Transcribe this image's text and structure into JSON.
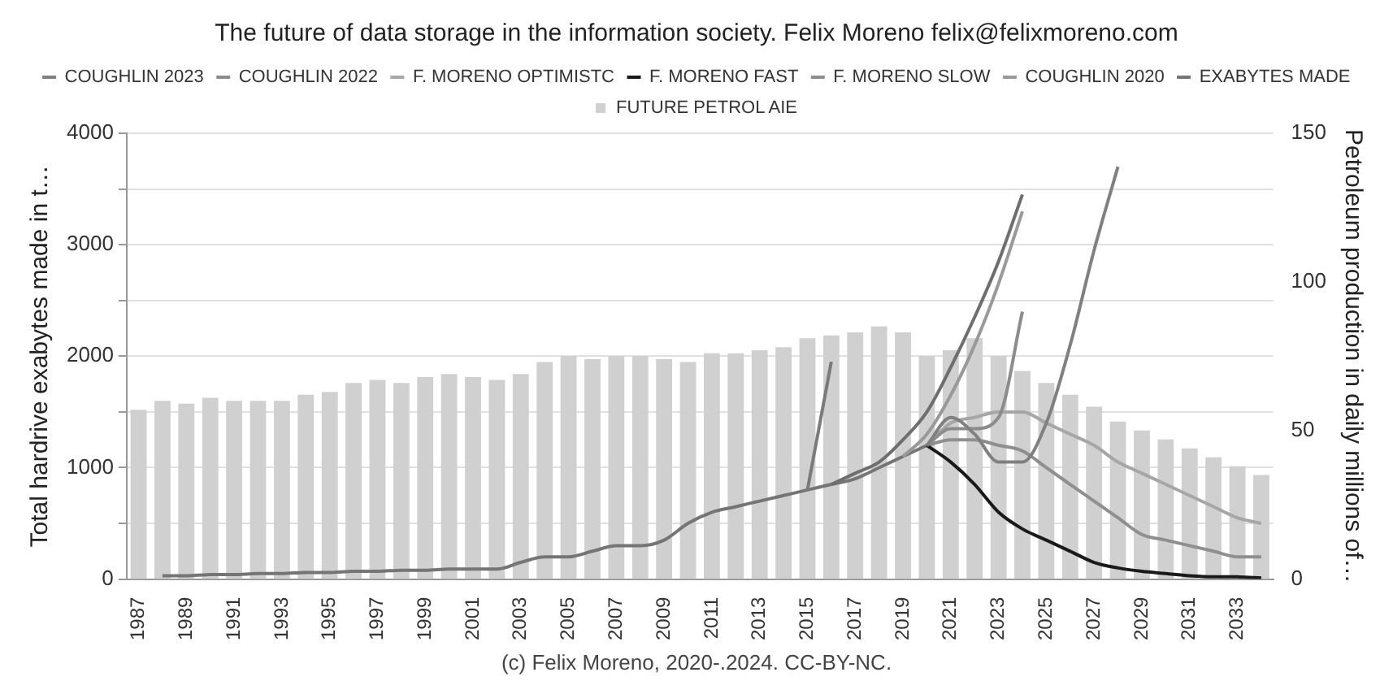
{
  "chart_data": {
    "type": "line",
    "title": "The future of data storage in the information society. Felix Moreno felix@felixmoreno.com",
    "categories": [
      "1987",
      null,
      "1989",
      null,
      "1991",
      null,
      "1993",
      null,
      "1995",
      null,
      "1997",
      null,
      "1999",
      null,
      "2001",
      null,
      "2003",
      null,
      "2005",
      null,
      "2007",
      null,
      "2009",
      null,
      "2011",
      null,
      "2013",
      null,
      "2015",
      null,
      "2017",
      null,
      "2019",
      null,
      "2021",
      null,
      "2023",
      null,
      "2025",
      null,
      "2027",
      null,
      "2029",
      null,
      "2031",
      null,
      "2033",
      null
    ],
    "series": [
      {
        "name": "COUGHLIN 2023",
        "color": "#808080",
        "values": [
          null,
          null,
          null,
          null,
          null,
          null,
          null,
          null,
          null,
          null,
          null,
          null,
          null,
          null,
          null,
          null,
          null,
          null,
          null,
          null,
          null,
          null,
          null,
          null,
          null,
          null,
          null,
          null,
          null,
          null,
          null,
          null,
          null,
          1200,
          1450,
          1300,
          1050,
          1050,
          1400,
          2100,
          2950,
          3700,
          null,
          null,
          null,
          null,
          null,
          null
        ]
      },
      {
        "name": "COUGHLIN 2022",
        "color": "#8c8c8c",
        "values": [
          null,
          null,
          null,
          null,
          null,
          null,
          null,
          null,
          null,
          null,
          null,
          null,
          null,
          null,
          null,
          null,
          null,
          null,
          null,
          null,
          null,
          null,
          null,
          null,
          null,
          null,
          null,
          null,
          null,
          null,
          null,
          null,
          null,
          1200,
          1350,
          1350,
          1450,
          2400,
          null,
          null,
          null,
          null,
          null,
          null,
          null,
          null,
          null,
          null
        ]
      },
      {
        "name": "F. MORENO OPTIMISTC",
        "color": "#a6a6a6",
        "values": [
          null,
          null,
          null,
          null,
          null,
          null,
          null,
          null,
          null,
          null,
          null,
          null,
          null,
          null,
          null,
          null,
          null,
          null,
          null,
          null,
          null,
          null,
          null,
          null,
          null,
          null,
          null,
          null,
          null,
          null,
          null,
          null,
          null,
          1200,
          1400,
          1450,
          1500,
          1500,
          1400,
          1300,
          1200,
          1050,
          950,
          850,
          750,
          650,
          550,
          500
        ]
      },
      {
        "name": "F. MORENO FAST",
        "color": "#1a1a1a",
        "values": [
          null,
          null,
          null,
          null,
          null,
          null,
          null,
          null,
          null,
          null,
          null,
          null,
          null,
          null,
          null,
          null,
          null,
          null,
          null,
          null,
          null,
          null,
          null,
          null,
          null,
          null,
          null,
          null,
          null,
          null,
          null,
          null,
          null,
          1200,
          1050,
          850,
          600,
          450,
          350,
          250,
          150,
          100,
          70,
          50,
          30,
          20,
          20,
          10
        ]
      },
      {
        "name": "F. MORENO SLOW",
        "color": "#8f8f8f",
        "values": [
          null,
          null,
          null,
          null,
          null,
          null,
          null,
          null,
          null,
          null,
          null,
          null,
          null,
          null,
          null,
          null,
          null,
          null,
          null,
          null,
          null,
          null,
          null,
          null,
          null,
          null,
          null,
          null,
          null,
          null,
          null,
          null,
          null,
          1200,
          1250,
          1250,
          1200,
          1150,
          1000,
          850,
          700,
          550,
          400,
          350,
          300,
          250,
          200,
          200
        ]
      },
      {
        "color": "#7a7a7a",
        "values": [
          null,
          null,
          null,
          null,
          null,
          null,
          null,
          null,
          null,
          null,
          null,
          null,
          null,
          null,
          null,
          null,
          null,
          null,
          null,
          null,
          null,
          null,
          null,
          null,
          null,
          null,
          null,
          null,
          800,
          1950,
          null,
          null,
          null,
          null,
          null,
          null,
          null,
          null,
          null,
          null,
          null,
          null,
          null,
          null,
          null,
          null,
          null,
          null
        ]
      },
      {
        "color": "#6e6e6e",
        "values": [
          null,
          null,
          null,
          null,
          null,
          null,
          null,
          null,
          null,
          null,
          null,
          null,
          null,
          null,
          null,
          null,
          null,
          null,
          null,
          null,
          null,
          null,
          null,
          null,
          null,
          null,
          null,
          null,
          null,
          850,
          950,
          1050,
          1250,
          1500,
          1900,
          2350,
          2850,
          3450,
          null,
          null,
          null,
          null,
          null,
          null,
          null,
          null,
          null,
          null
        ]
      },
      {
        "name": "COUGHLIN 2020",
        "color": "#999999",
        "values": [
          null,
          null,
          null,
          null,
          null,
          null,
          null,
          null,
          null,
          null,
          null,
          null,
          null,
          null,
          null,
          null,
          null,
          null,
          null,
          null,
          null,
          null,
          null,
          null,
          null,
          null,
          null,
          null,
          null,
          null,
          null,
          null,
          1100,
          1300,
          1650,
          2100,
          2650,
          3300,
          null,
          null,
          null,
          null,
          null,
          null,
          null,
          null,
          null,
          null
        ]
      },
      {
        "name": "EXABYTES MADE",
        "color": "#757575",
        "values": [
          null,
          30,
          30,
          40,
          40,
          50,
          50,
          60,
          60,
          70,
          70,
          80,
          80,
          90,
          90,
          90,
          150,
          200,
          200,
          250,
          300,
          300,
          350,
          500,
          600,
          650,
          700,
          750,
          800,
          850,
          900,
          1000,
          1100,
          1200,
          null,
          null,
          null,
          null,
          null,
          null,
          null,
          null,
          null,
          null,
          null,
          null,
          null,
          null
        ]
      },
      {
        "name": "FUTURE PETROL AIE",
        "type": "bar",
        "axis": "y2",
        "color": "#d0d0d0",
        "values": [
          57,
          60,
          59,
          61,
          60,
          60,
          60,
          62,
          63,
          66,
          67,
          66,
          68,
          69,
          68,
          67,
          69,
          73,
          75,
          74,
          75,
          75,
          74,
          73,
          76,
          76,
          77,
          78,
          81,
          82,
          83,
          85,
          83,
          75,
          77,
          81,
          75,
          70,
          66,
          62,
          58,
          53,
          50,
          47,
          44,
          41,
          38,
          35
        ]
      }
    ],
    "ylabel": "Total hardrive exabytes made in t…",
    "y2label": "Petroleum production in daily millions of…",
    "ylim": [
      0,
      4000
    ],
    "yticks": [
      0,
      {
        "value": 500,
        "label": null
      },
      1000,
      {
        "value": 1500,
        "label": null
      },
      2000,
      {
        "value": 2500,
        "label": null
      },
      3000,
      {
        "value": 3500,
        "label": null
      },
      4000
    ],
    "y2lim": [
      0,
      150
    ],
    "y2ticks": [
      0,
      50,
      100,
      150
    ],
    "grid": "y",
    "legend": "top",
    "annotations": [
      "(c) Felix Moreno, 2020-.2024. CC-BY-NC."
    ]
  }
}
